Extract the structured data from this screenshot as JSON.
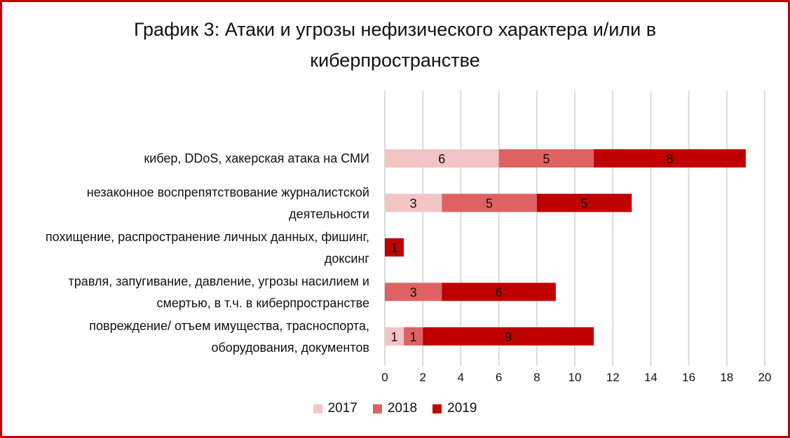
{
  "chart_data": {
    "type": "bar",
    "orientation": "horizontal",
    "stacked": true,
    "title": "График 3: Атаки и угрозы нефизического характера и/или в киберпространстве",
    "title_lines": [
      "График 3: Атаки и угрозы нефизического характера и/или в",
      "киберпространстве"
    ],
    "categories": [
      [
        "кибер, DDoS, хакерская атака на СМИ"
      ],
      [
        "незаконное воспрепятствование журналистской",
        "деятельности"
      ],
      [
        "похищение, распространение личных данных, фишинг,",
        "доксинг"
      ],
      [
        "травля, запугивание, давление, угрозы насилием и",
        "смертью, в т.ч. в киберпространстве"
      ],
      [
        "повреждение/ отъем имущества, трасноспорта,",
        "оборудования, документов"
      ]
    ],
    "series": [
      {
        "name": "2017",
        "color": "#f2c4c4",
        "values": [
          6,
          3,
          0,
          0,
          1
        ]
      },
      {
        "name": "2018",
        "color": "#de6262",
        "values": [
          5,
          5,
          0,
          3,
          1
        ]
      },
      {
        "name": "2019",
        "color": "#c00000",
        "values": [
          8,
          5,
          1,
          6,
          9
        ]
      }
    ],
    "xlim": [
      0,
      20
    ],
    "xticks": [
      "0",
      "2",
      "4",
      "6",
      "8",
      "10",
      "12",
      "14",
      "16",
      "18",
      "20"
    ],
    "grid": true,
    "legend_position": "bottom"
  },
  "frame": {
    "border_color": "#c00000"
  }
}
